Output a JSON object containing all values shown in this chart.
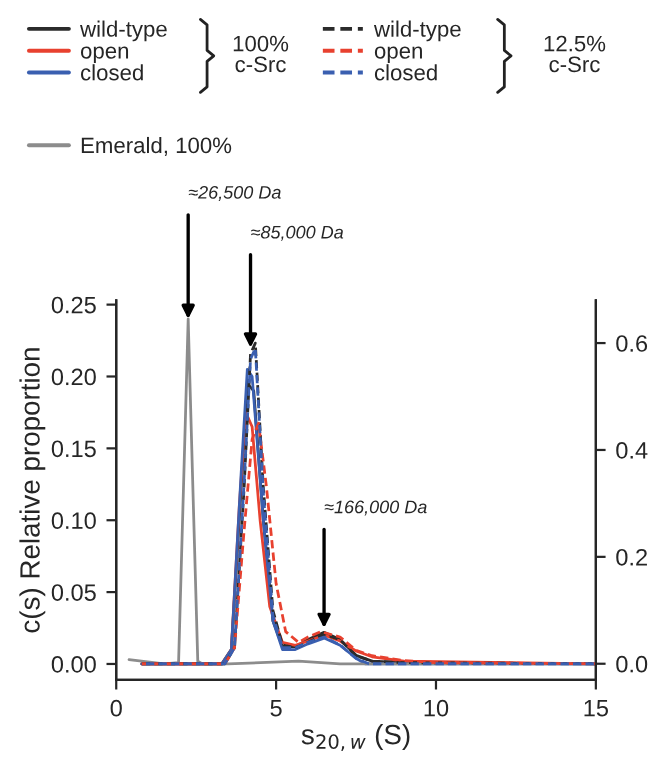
{
  "chart_data": {
    "type": "line",
    "xlabel": "s$_{20,w}$ (S)",
    "ylabel": "c(s) Relative proportion",
    "xlim": [
      0,
      15
    ],
    "xticks": [
      0,
      5,
      10,
      15
    ],
    "ylim": [
      -0.011,
      0.253
    ],
    "yticks": [
      {
        "value": 0,
        "label": "0.00"
      },
      {
        "value": 0.05,
        "label": "0.05"
      },
      {
        "value": 0.1,
        "label": "0.10"
      },
      {
        "value": 0.15,
        "label": "0.15"
      },
      {
        "value": 0.2,
        "label": "0.20"
      },
      {
        "value": 0.25,
        "label": "0.25"
      }
    ],
    "y2lim": [
      -0.03,
      0.68
    ],
    "y2ticks": [
      {
        "value": 0,
        "label": "0.0"
      },
      {
        "value": 0.2,
        "label": "0.2"
      },
      {
        "value": 0.4,
        "label": "0.4"
      },
      {
        "value": 0.6,
        "label": "0.6"
      }
    ],
    "grid": false,
    "legend": "top",
    "marker": "none",
    "series": [
      {
        "name": "wild-type",
        "color": "#2b2b2b",
        "line_style": "solid",
        "x": [
          0.8,
          3.3,
          3.6,
          3.9,
          4.1,
          4.3,
          4.6,
          4.9,
          5.2,
          5.6,
          6.0,
          6.5,
          7.0,
          7.5,
          8.0,
          9.0,
          15.0
        ],
        "values": [
          0,
          0,
          0.01,
          0.12,
          0.195,
          0.19,
          0.1,
          0.03,
          0.012,
          0.012,
          0.017,
          0.022,
          0.017,
          0.006,
          0.002,
          0.001,
          0
        ]
      },
      {
        "name": "open",
        "color": "#e8412f",
        "line_style": "solid",
        "x": [
          0.8,
          3.3,
          3.6,
          3.85,
          4.05,
          4.25,
          4.5,
          4.8,
          5.2,
          5.6,
          6.0,
          6.5,
          7.0,
          7.5,
          8.0,
          9.0,
          15.0
        ],
        "values": [
          0,
          0,
          0.01,
          0.11,
          0.175,
          0.165,
          0.1,
          0.04,
          0.015,
          0.013,
          0.016,
          0.02,
          0.016,
          0.009,
          0.005,
          0.002,
          0
        ]
      },
      {
        "name": "closed",
        "color": "#3a5fb0",
        "line_style": "solid",
        "x": [
          0.8,
          3.3,
          3.6,
          3.9,
          4.1,
          4.25,
          4.6,
          4.9,
          5.2,
          5.6,
          6.0,
          6.5,
          7.0,
          7.5,
          7.8,
          15.0
        ],
        "values": [
          0,
          0,
          0.01,
          0.13,
          0.205,
          0.2,
          0.1,
          0.03,
          0.01,
          0.01,
          0.014,
          0.018,
          0.013,
          0.004,
          0,
          0
        ]
      },
      {
        "name": "wild-type",
        "color": "#2b2b2b",
        "line_style": "dashed",
        "axis": "y2",
        "x": [
          0.8,
          3.4,
          3.7,
          4.0,
          4.2,
          4.35,
          4.6,
          4.9,
          5.2,
          5.6,
          6.0,
          6.5,
          7.0,
          7.5,
          8.0,
          9.0,
          15.0
        ],
        "values": [
          0,
          0,
          0.03,
          0.33,
          0.58,
          0.6,
          0.33,
          0.1,
          0.035,
          0.03,
          0.04,
          0.055,
          0.045,
          0.015,
          0.005,
          0.002,
          0
        ]
      },
      {
        "name": "open",
        "color": "#e8412f",
        "line_style": "dashed",
        "axis": "y2",
        "x": [
          0.8,
          3.4,
          3.7,
          4.0,
          4.25,
          4.45,
          4.7,
          5.0,
          5.3,
          5.7,
          6.0,
          6.4,
          7.0,
          7.5,
          8.0,
          9.0,
          10.0,
          15.0
        ],
        "values": [
          0,
          0,
          0.03,
          0.25,
          0.42,
          0.45,
          0.33,
          0.15,
          0.06,
          0.04,
          0.05,
          0.06,
          0.05,
          0.025,
          0.015,
          0.006,
          0.002,
          0
        ]
      },
      {
        "name": "closed",
        "color": "#3a5fb0",
        "line_style": "dashed",
        "axis": "y2",
        "x": [
          0.8,
          3.4,
          3.7,
          4.0,
          4.2,
          4.35,
          4.6,
          4.9,
          5.2,
          5.6,
          6.0,
          6.5,
          7.0,
          7.5,
          7.9,
          15.0
        ],
        "values": [
          0,
          0,
          0.03,
          0.34,
          0.57,
          0.59,
          0.32,
          0.09,
          0.03,
          0.03,
          0.04,
          0.05,
          0.035,
          0.01,
          0,
          0
        ]
      },
      {
        "name": "Emerald, 100%",
        "color": "#8c8c8c",
        "line_style": "solid",
        "x": [
          0.4,
          1.5,
          1.95,
          2.1,
          2.25,
          2.4,
          2.55,
          2.7,
          3.5,
          5.7,
          7.0,
          15.0
        ],
        "values": [
          0.003,
          0,
          0.001,
          0.12,
          0.24,
          0.12,
          0.002,
          0,
          0,
          0.002,
          0,
          0
        ]
      }
    ],
    "annotations": [
      "100%\nc-Src",
      "12.5%\nc-Src",
      {
        "text": "≈26,500 Da",
        "x": 2.25,
        "y": 0.24
      },
      {
        "text": "≈85,000 Da",
        "x": 4.2,
        "y": 0.22
      },
      {
        "text": "≈166,000 Da",
        "x": 6.5,
        "y": 0.025
      }
    ]
  }
}
